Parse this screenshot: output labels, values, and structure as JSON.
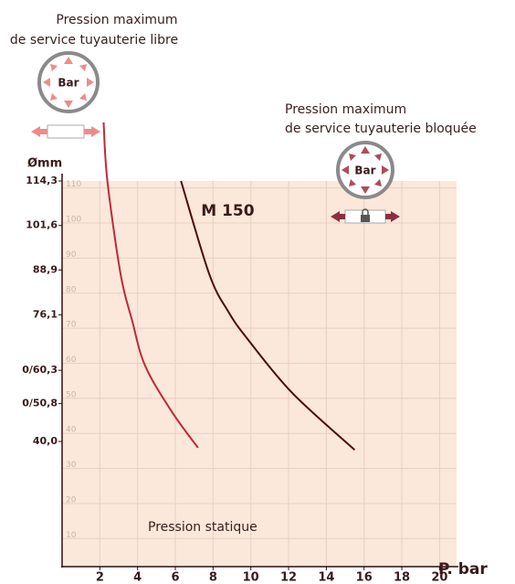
{
  "chart_data": {
    "type": "line",
    "annotations": [
      "Pression maximum",
      "de service tuyauterie libre",
      "Bar",
      "Pression maximum",
      "de service tuyauterie bloquée",
      "Bar",
      "Pression statique"
    ],
    "x_label": "P. bar",
    "y_label": "Ømm",
    "xlim": [
      0,
      20.9
    ],
    "xticks": [
      2,
      4,
      6,
      8,
      10,
      12,
      14,
      16,
      18,
      20
    ],
    "ylim": [
      2,
      112
    ],
    "yticks": [
      10,
      20,
      30,
      40,
      50,
      60,
      70,
      80,
      90,
      100,
      110
    ],
    "y2lim": [
      4.3,
      114.3
    ],
    "y2ticks": [
      {
        "value": 114.3,
        "label": "114,3"
      },
      {
        "value": 101.6,
        "label": "101,6"
      },
      {
        "value": 88.9,
        "label": "88,9"
      },
      {
        "value": 76.1,
        "label": "76,1"
      },
      {
        "value": 60.3,
        "label": "0/60,3"
      },
      {
        "value": 50.8,
        "label": "0/50,8"
      },
      {
        "value": 40.0,
        "label": "40,0"
      }
    ],
    "grid": true,
    "series": [
      {
        "color": "#c0283a",
        "axis": "y2",
        "x": [
          2.2,
          2.4,
          3.1,
          3.7,
          4.4,
          5.8,
          7.2
        ],
        "values": [
          131,
          114.3,
          87.7,
          74.7,
          61.6,
          48.6,
          38.2
        ]
      },
      {
        "name": "M 150",
        "color": "#4a0c10",
        "axis": "y2",
        "x": [
          6.3,
          7.8,
          8.8,
          9.8,
          12.2,
          15.5
        ],
        "values": [
          114.3,
          87.7,
          77.1,
          69.4,
          53.8,
          37.6
        ]
      }
    ]
  }
}
